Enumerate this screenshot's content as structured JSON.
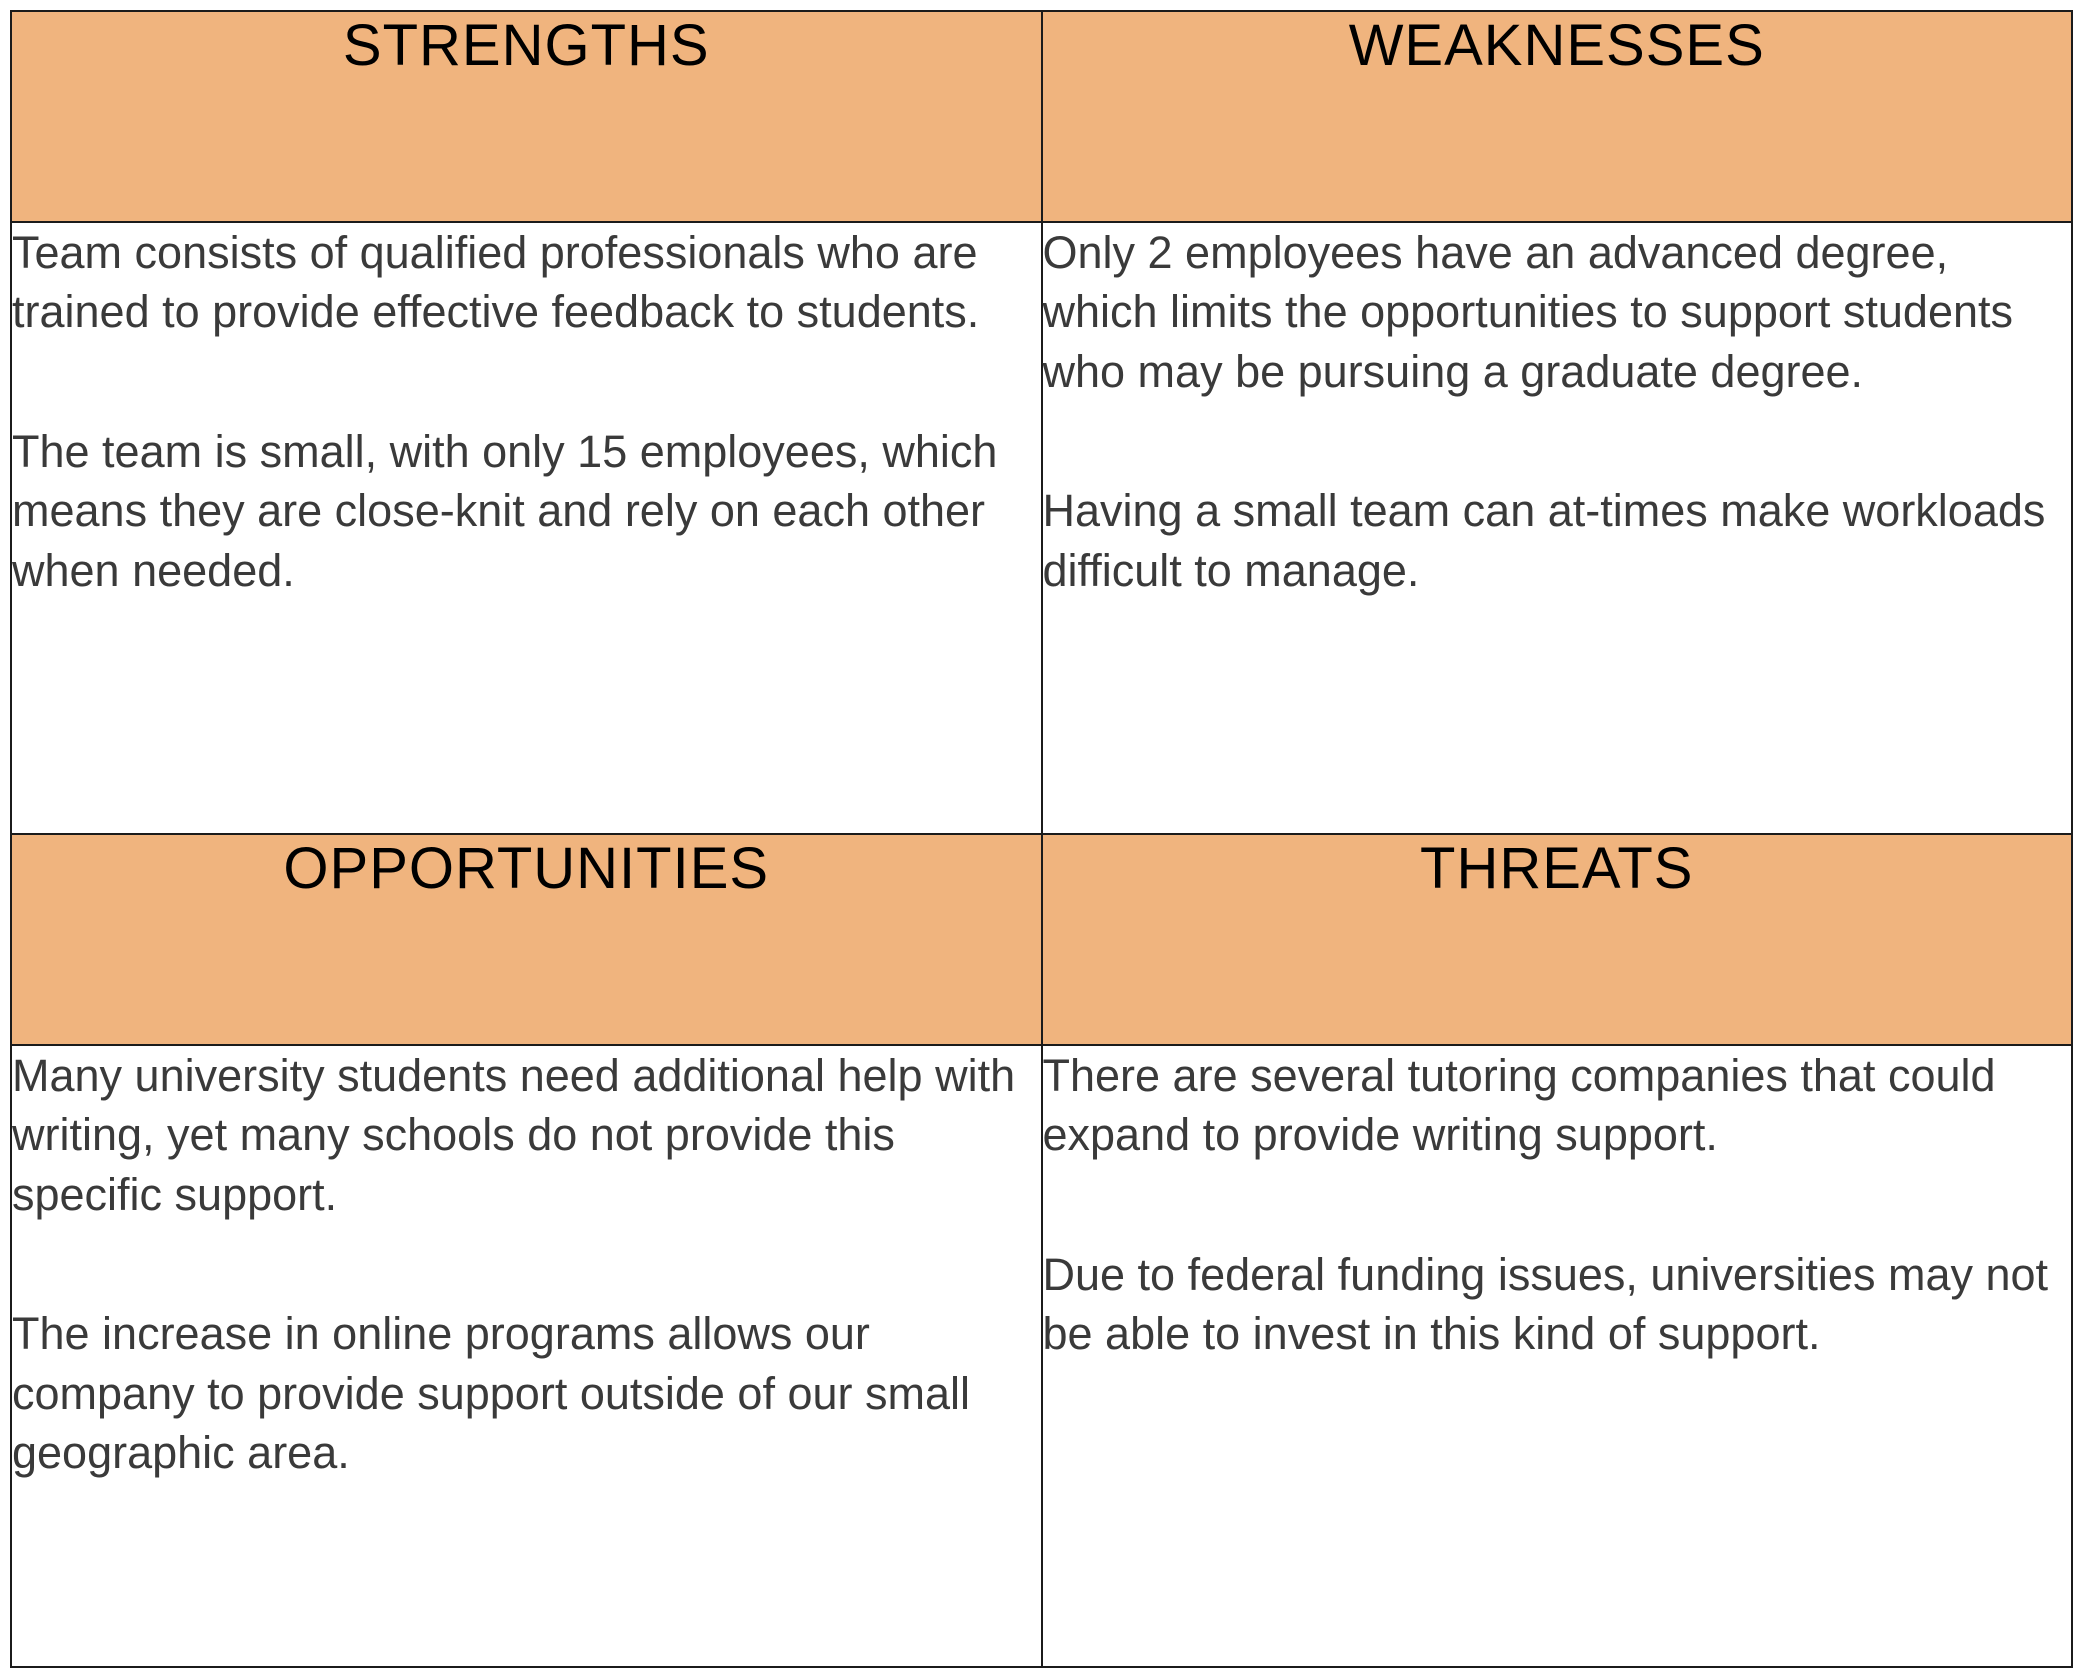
{
  "swot": {
    "type": "table",
    "columns": 2,
    "rows": 4,
    "colors": {
      "header_bg": "#f0b47e",
      "border": "#1b1b1b",
      "text": "#3a3a3a",
      "page_bg": "#ffffff"
    },
    "typography": {
      "header_fontsize_pt": 44,
      "body_fontsize_pt": 34,
      "header_weight": 500,
      "body_weight": 400,
      "font_family": "Segoe UI / Trebuchet MS"
    },
    "quadrants": {
      "strengths": {
        "header": "STRENGTHS",
        "items": [
          "Team consists of qualified professionals who are trained to provide effective feedback to students.",
          "The team is small, with only 15 employees, which means they are close-knit and rely on each other when needed."
        ]
      },
      "weaknesses": {
        "header": "WEAKNESSES",
        "items": [
          "Only 2 employees have an advanced degree, which limits the opportunities to support students who may be pursuing a graduate degree.",
          "Having a small team can at-times make workloads difficult to manage."
        ]
      },
      "opportunities": {
        "header": "OPPORTUNITIES",
        "items": [
          "Many university students need additional help with writing, yet many schools do not provide this specific support.",
          "The increase in online programs allows our company to provide support outside of our small geographic area."
        ]
      },
      "threats": {
        "header": "THREATS",
        "items": [
          "There are several tutoring companies that could expand to provide writing support.",
          "Due to federal funding issues, universities may not be able to invest in this kind of support."
        ]
      }
    }
  }
}
